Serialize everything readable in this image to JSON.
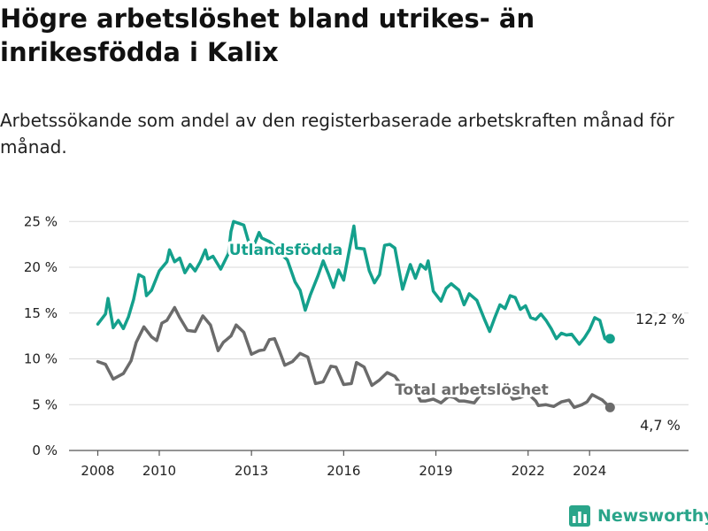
{
  "title": "Högre arbetslöshet bland utrikes- än inrikesfödda i Kalix",
  "subtitle": "Arbetssökande som andel av den registerbaserade arbetskraften månad för månad.",
  "brand": {
    "name": "Newsworthy",
    "color": "#2aa58a",
    "icon": "bar-chart-logo-icon"
  },
  "chart_data": {
    "type": "line",
    "x_axis": {
      "ticks": [
        "2008",
        "2010",
        "2013",
        "2016",
        "2019",
        "2022",
        "2024"
      ]
    },
    "y_axis": {
      "range": [
        0,
        26
      ],
      "ticks": [
        0,
        5,
        10,
        15,
        20,
        25
      ],
      "tick_labels": [
        "0 %",
        "5 %",
        "10 %",
        "15 %",
        "20 %",
        "25 %"
      ]
    },
    "grid": "horizontal",
    "series": [
      {
        "name": "Utlandsfödda",
        "color": "#14a08c",
        "end_label": "12,2 %",
        "points": [
          [
            "2008-01",
            13.8
          ],
          [
            "2008-04",
            14.9
          ],
          [
            "2008-05",
            16.6
          ],
          [
            "2008-07",
            13.4
          ],
          [
            "2008-09",
            14.2
          ],
          [
            "2008-11",
            13.3
          ],
          [
            "2009-01",
            14.6
          ],
          [
            "2009-03",
            16.5
          ],
          [
            "2009-05",
            19.2
          ],
          [
            "2009-07",
            18.9
          ],
          [
            "2009-08",
            16.9
          ],
          [
            "2009-10",
            17.5
          ],
          [
            "2010-01",
            19.6
          ],
          [
            "2010-04",
            20.6
          ],
          [
            "2010-05",
            21.9
          ],
          [
            "2010-07",
            20.6
          ],
          [
            "2010-09",
            21.0
          ],
          [
            "2010-11",
            19.4
          ],
          [
            "2011-01",
            20.3
          ],
          [
            "2011-03",
            19.6
          ],
          [
            "2011-05",
            20.6
          ],
          [
            "2011-07",
            21.9
          ],
          [
            "2011-08",
            20.9
          ],
          [
            "2011-10",
            21.2
          ],
          [
            "2012-01",
            19.8
          ],
          [
            "2012-04",
            21.5
          ],
          [
            "2012-05",
            23.9
          ],
          [
            "2012-06",
            25.0
          ],
          [
            "2012-08",
            24.8
          ],
          [
            "2012-10",
            24.6
          ],
          [
            "2013-01",
            21.7
          ],
          [
            "2013-04",
            23.8
          ],
          [
            "2013-05",
            23.2
          ],
          [
            "2013-08",
            22.8
          ],
          [
            "2013-10",
            22.3
          ],
          [
            "2013-12",
            21.6
          ],
          [
            "2014-03",
            20.8
          ],
          [
            "2014-06",
            18.4
          ],
          [
            "2014-08",
            17.5
          ],
          [
            "2014-10",
            15.3
          ],
          [
            "2014-12",
            17.0
          ],
          [
            "2015-03",
            19.1
          ],
          [
            "2015-05",
            20.7
          ],
          [
            "2015-07",
            19.3
          ],
          [
            "2015-09",
            17.8
          ],
          [
            "2015-11",
            19.7
          ],
          [
            "2016-01",
            18.6
          ],
          [
            "2016-05",
            24.5
          ],
          [
            "2016-06",
            22.1
          ],
          [
            "2016-09",
            22.0
          ],
          [
            "2016-11",
            19.6
          ],
          [
            "2017-01",
            18.3
          ],
          [
            "2017-03",
            19.2
          ],
          [
            "2017-05",
            22.4
          ],
          [
            "2017-07",
            22.5
          ],
          [
            "2017-09",
            22.1
          ],
          [
            "2017-12",
            17.6
          ],
          [
            "2018-03",
            20.3
          ],
          [
            "2018-05",
            18.8
          ],
          [
            "2018-07",
            20.3
          ],
          [
            "2018-09",
            19.8
          ],
          [
            "2018-10",
            20.7
          ],
          [
            "2018-12",
            17.4
          ],
          [
            "2019-03",
            16.3
          ],
          [
            "2019-05",
            17.7
          ],
          [
            "2019-07",
            18.2
          ],
          [
            "2019-10",
            17.5
          ],
          [
            "2019-12",
            15.9
          ],
          [
            "2020-02",
            17.1
          ],
          [
            "2020-05",
            16.4
          ],
          [
            "2020-08",
            14.3
          ],
          [
            "2020-10",
            13.0
          ],
          [
            "2020-12",
            14.5
          ],
          [
            "2021-02",
            15.9
          ],
          [
            "2021-04",
            15.5
          ],
          [
            "2021-06",
            16.9
          ],
          [
            "2021-08",
            16.7
          ],
          [
            "2021-10",
            15.4
          ],
          [
            "2021-12",
            15.8
          ],
          [
            "2022-02",
            14.5
          ],
          [
            "2022-04",
            14.3
          ],
          [
            "2022-06",
            14.9
          ],
          [
            "2022-08",
            14.2
          ],
          [
            "2022-10",
            13.3
          ],
          [
            "2022-12",
            12.2
          ],
          [
            "2023-02",
            12.8
          ],
          [
            "2023-04",
            12.6
          ],
          [
            "2023-06",
            12.7
          ],
          [
            "2023-09",
            11.6
          ],
          [
            "2023-11",
            12.3
          ],
          [
            "2024-01",
            13.2
          ],
          [
            "2024-03",
            14.5
          ],
          [
            "2024-05",
            14.2
          ],
          [
            "2024-07",
            12.2
          ],
          [
            "2024-09",
            12.2
          ]
        ]
      },
      {
        "name": "Total arbetslöshet",
        "color": "#6b6b6b",
        "end_label": "4,7 %",
        "points": [
          [
            "2008-01",
            9.7
          ],
          [
            "2008-04",
            9.4
          ],
          [
            "2008-07",
            7.8
          ],
          [
            "2008-11",
            8.4
          ],
          [
            "2009-02",
            9.8
          ],
          [
            "2009-04",
            11.8
          ],
          [
            "2009-07",
            13.5
          ],
          [
            "2009-10",
            12.4
          ],
          [
            "2009-12",
            12.0
          ],
          [
            "2010-02",
            13.9
          ],
          [
            "2010-04",
            14.2
          ],
          [
            "2010-07",
            15.6
          ],
          [
            "2010-09",
            14.5
          ],
          [
            "2010-12",
            13.1
          ],
          [
            "2011-03",
            13.0
          ],
          [
            "2011-06",
            14.7
          ],
          [
            "2011-09",
            13.7
          ],
          [
            "2011-12",
            10.9
          ],
          [
            "2012-02",
            11.8
          ],
          [
            "2012-05",
            12.5
          ],
          [
            "2012-07",
            13.7
          ],
          [
            "2012-10",
            12.9
          ],
          [
            "2013-01",
            10.5
          ],
          [
            "2013-04",
            10.9
          ],
          [
            "2013-06",
            11.0
          ],
          [
            "2013-08",
            12.1
          ],
          [
            "2013-10",
            12.2
          ],
          [
            "2013-12",
            10.8
          ],
          [
            "2014-02",
            9.3
          ],
          [
            "2014-05",
            9.7
          ],
          [
            "2014-08",
            10.6
          ],
          [
            "2014-11",
            10.2
          ],
          [
            "2015-02",
            7.3
          ],
          [
            "2015-05",
            7.5
          ],
          [
            "2015-08",
            9.2
          ],
          [
            "2015-10",
            9.1
          ],
          [
            "2016-01",
            7.2
          ],
          [
            "2016-04",
            7.3
          ],
          [
            "2016-06",
            9.6
          ],
          [
            "2016-09",
            9.1
          ],
          [
            "2016-12",
            7.1
          ],
          [
            "2017-03",
            7.7
          ],
          [
            "2017-06",
            8.5
          ],
          [
            "2017-09",
            8.1
          ],
          [
            "2018-02",
            6.2
          ],
          [
            "2018-05",
            6.5
          ],
          [
            "2018-07",
            5.4
          ],
          [
            "2018-09",
            5.4
          ],
          [
            "2018-12",
            5.6
          ],
          [
            "2019-03",
            5.2
          ],
          [
            "2019-06",
            5.9
          ],
          [
            "2019-08",
            5.8
          ],
          [
            "2019-10",
            5.4
          ],
          [
            "2019-12",
            5.4
          ],
          [
            "2020-04",
            5.2
          ],
          [
            "2020-07",
            6.3
          ],
          [
            "2020-10",
            7.1
          ],
          [
            "2021-01",
            6.9
          ],
          [
            "2021-04",
            7.3
          ],
          [
            "2021-07",
            5.6
          ],
          [
            "2021-10",
            5.8
          ],
          [
            "2022-01",
            6.2
          ],
          [
            "2022-04",
            5.4
          ],
          [
            "2022-05",
            4.9
          ],
          [
            "2022-08",
            5.0
          ],
          [
            "2022-11",
            4.8
          ],
          [
            "2023-02",
            5.3
          ],
          [
            "2023-05",
            5.5
          ],
          [
            "2023-07",
            4.7
          ],
          [
            "2023-10",
            5.0
          ],
          [
            "2023-12",
            5.3
          ],
          [
            "2024-02",
            6.1
          ],
          [
            "2024-04",
            5.8
          ],
          [
            "2024-06",
            5.5
          ],
          [
            "2024-09",
            4.7
          ]
        ]
      }
    ]
  }
}
